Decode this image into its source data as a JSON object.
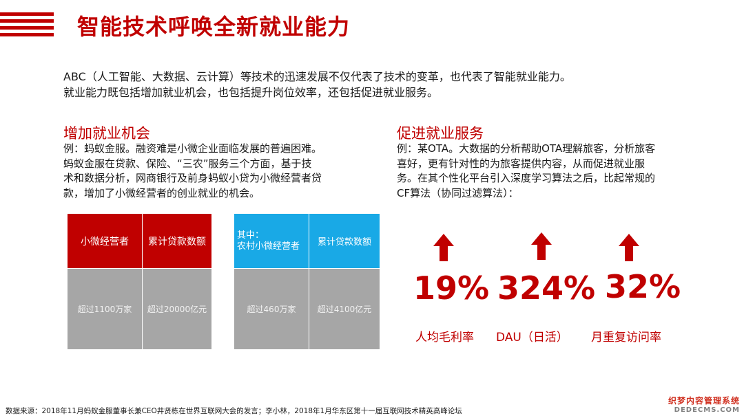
{
  "title": "智能技术呼唤全新就业能力",
  "intro": {
    "line1": "ABC（人工智能、大数据、云计算）等技术的迅速发展不仅代表了技术的变革，也代表了智能就业能力。",
    "line2": "就业能力既包括增加就业机会，也包括提升岗位效率，还包括促进就业服务。"
  },
  "left_section": {
    "title": "增加就业机会",
    "lines": [
      "例：蚂蚁金服。融资难是小微企业面临发展的普遍困难。",
      "蚂蚁金服在贷款、保险、“三农”服务三个方面，基于技",
      "术和数据分析，网商银行及前身蚂蚁小贷为小微经营者贷",
      "款，增加了小微经营者的创业就业的机会。"
    ]
  },
  "right_section": {
    "title": "促进就业服务",
    "lines": [
      "例：某OTA。大数据的分析帮助OTA理解旅客，分析旅客",
      "喜好，更有针对性的为旅客提供内容，从而促进就业服",
      "务。在其个性化平台引入深度学习算法之后，比起常规的",
      "CF算法（协同过滤算法）："
    ]
  },
  "table_red": {
    "headers": [
      "小微经营者",
      "累计贷款数额"
    ],
    "values": [
      "超过1100万家",
      "超过20000亿元"
    ],
    "color": "#c00000"
  },
  "table_blue": {
    "headers": [
      "其中：",
      "农村小微经营者",
      "累计贷款数额"
    ],
    "values": [
      "超过460万家",
      "超过4100亿元"
    ],
    "color": "#19a9e6"
  },
  "stats": [
    {
      "value": "19%",
      "label": "人均毛利率",
      "icon": "up-arrow-icon"
    },
    {
      "value": "324%",
      "label": "DAU（日活）",
      "icon": "up-arrow-icon"
    },
    {
      "value": "32%",
      "label": "月重复访问率",
      "icon": "up-arrow-icon"
    }
  ],
  "source": "数据来源：2018年11月蚂蚁金服董事长兼CEO井贤栋在世界互联网大会的发言；李小林，2018年1月华东区第十一届互联网技术精英高峰论坛",
  "watermark": {
    "cn": "织梦内容管理系统",
    "en": "DEDECMS.COM"
  },
  "accent_color": "#c00000"
}
